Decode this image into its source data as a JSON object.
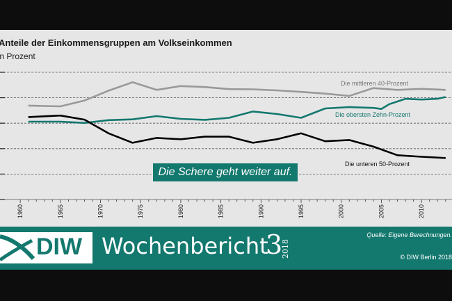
{
  "chart_data": {
    "type": "line",
    "title": "Anteile der Einkommensgruppen am Volkseinkommen",
    "unit_label": "In Prozent",
    "x_ticks": [
      "1960",
      "1965",
      "1970",
      "1975",
      "1980",
      "1985",
      "1990",
      "1995",
      "2000",
      "2005",
      "2010"
    ],
    "xlim": [
      1959,
      2013.5
    ],
    "ylim": [
      0,
      50
    ],
    "y_gridlines": [
      0,
      10,
      20,
      30,
      40,
      50
    ],
    "grid": true,
    "series": [
      {
        "name": "Die mittleren 40-Prozent",
        "color": "#999999",
        "x": [
          1961,
          1965,
          1968,
          1971,
          1974,
          1977,
          1980,
          1983,
          1986,
          1989,
          1992,
          1995,
          1998,
          2001,
          2004,
          2007,
          2010,
          2013
        ],
        "y": [
          36.9,
          36.6,
          38.9,
          42.8,
          46.1,
          43.1,
          44.6,
          44.2,
          43.4,
          43.3,
          42.9,
          42.3,
          41.6,
          40.7,
          43.8,
          43.1,
          43.5,
          43.1
        ]
      },
      {
        "name": "Die obersten Zehn-Prozent",
        "color": "#13786e",
        "x": [
          1961,
          1965,
          1968,
          1971,
          1974,
          1977,
          1980,
          1983,
          1986,
          1989,
          1992,
          1995,
          1998,
          2001,
          2004,
          2005,
          2006,
          2008,
          2010,
          2012,
          2013
        ],
        "y": [
          30.6,
          30.6,
          30.1,
          31.2,
          31.5,
          32.8,
          31.7,
          31.3,
          32.1,
          34.6,
          33.6,
          32.1,
          35.8,
          36.3,
          36.0,
          35.6,
          37.5,
          39.6,
          39.3,
          39.6,
          40.3
        ]
      },
      {
        "name": "Die unteren 50-Prozent",
        "color": "#000000",
        "x": [
          1961,
          1965,
          1968,
          1971,
          1974,
          1977,
          1980,
          1983,
          1986,
          1989,
          1992,
          1995,
          1998,
          2001,
          2004,
          2007,
          2010,
          2013
        ],
        "y": [
          32.4,
          33.0,
          31.4,
          26.0,
          22.3,
          24.2,
          23.7,
          24.7,
          24.7,
          22.3,
          23.7,
          26.0,
          22.9,
          23.4,
          20.8,
          17.4,
          16.8,
          16.3
        ]
      }
    ],
    "series_labels": [
      "Die mittleren 40-Prozent",
      "Die obersten Zehn-Prozent",
      "Die unteren 50-Prozent"
    ]
  },
  "callout": "Die Schere geht weiter auf.",
  "footer": {
    "logo": "DIW",
    "publication": "Wochenbericht",
    "issue": "3",
    "year": "2018",
    "source": "Quelle: Eigene Berechnungen.",
    "copyright": "© DIW Berlin 2018",
    "colors": {
      "brand": "#13786e",
      "background": "#e6e6e6"
    }
  }
}
